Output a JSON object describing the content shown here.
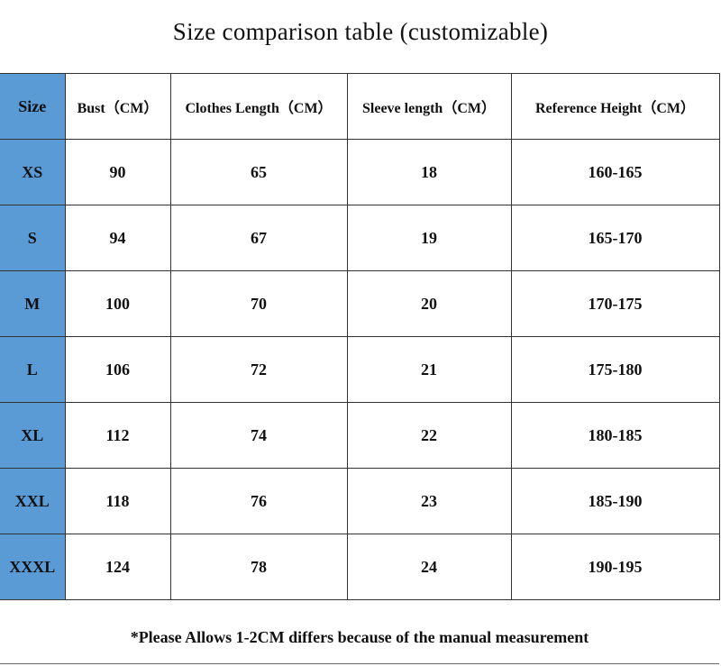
{
  "title": "Size comparison table (customizable)",
  "accent_color": "#5b9bd5",
  "headers": [
    "Size",
    "Bust（CM）",
    "Clothes Length（CM）",
    "Sleeve length（CM）",
    "Reference Height（CM）"
  ],
  "rows": [
    [
      "XS",
      "90",
      "65",
      "18",
      "160-165"
    ],
    [
      "S",
      "94",
      "67",
      "19",
      "165-170"
    ],
    [
      "M",
      "100",
      "70",
      "20",
      "170-175"
    ],
    [
      "L",
      "106",
      "72",
      "21",
      "175-180"
    ],
    [
      "XL",
      "112",
      "74",
      "22",
      "180-185"
    ],
    [
      "XXL",
      "118",
      "76",
      "23",
      "185-190"
    ],
    [
      "XXXL",
      "124",
      "78",
      "24",
      "190-195"
    ]
  ],
  "note": "*Please Allows 1-2CM differs because of the manual measurement"
}
